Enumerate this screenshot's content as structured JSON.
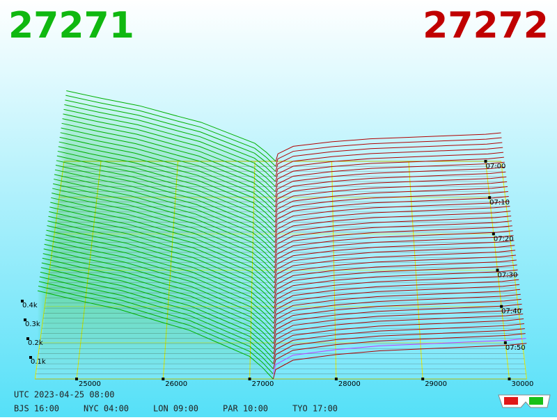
{
  "header": {
    "bid": "27271",
    "ask": "27272"
  },
  "chart_data": {
    "type": "depth3d",
    "bids": {
      "color": "#00b000",
      "prices": [
        24550,
        25000,
        25500,
        26000,
        26300,
        26600,
        27000,
        27150,
        27271
      ],
      "depths": [
        0.47,
        0.42,
        0.37,
        0.3,
        0.26,
        0.2,
        0.12,
        0.06,
        0
      ]
    },
    "asks": {
      "color": "#b00000",
      "prices": [
        27272,
        27300,
        27500,
        28000,
        28500,
        29000,
        29500,
        30000,
        30200
      ],
      "depths": [
        0,
        0.05,
        0.1,
        0.13,
        0.15,
        0.16,
        0.17,
        0.18,
        0.19
      ]
    },
    "xlim": [
      24520,
      30200
    ],
    "xticks": [
      25000,
      26000,
      27000,
      28000,
      29000,
      30000
    ],
    "zticks": [
      {
        "value": 0.1,
        "label": "0.1k"
      },
      {
        "value": 0.2,
        "label": "0.2k"
      },
      {
        "value": 0.3,
        "label": "0.3k"
      },
      {
        "value": 0.4,
        "label": "0.4k"
      }
    ],
    "tlim": [
      420,
      480
    ],
    "tticks": [
      {
        "value": 420,
        "label": "07:00"
      },
      {
        "value": 430,
        "label": "07:10"
      },
      {
        "value": 440,
        "label": "07:20"
      },
      {
        "value": 450,
        "label": "07:30"
      },
      {
        "value": 460,
        "label": "07:40"
      },
      {
        "value": 470,
        "label": "07:50"
      }
    ]
  },
  "footer": {
    "utc": "UTC 2023-04-25 08:00",
    "zones": [
      "BJS 16:00",
      "NYC 04:00",
      "LON 09:00",
      "PAR 10:00",
      "TYO 17:00"
    ]
  }
}
